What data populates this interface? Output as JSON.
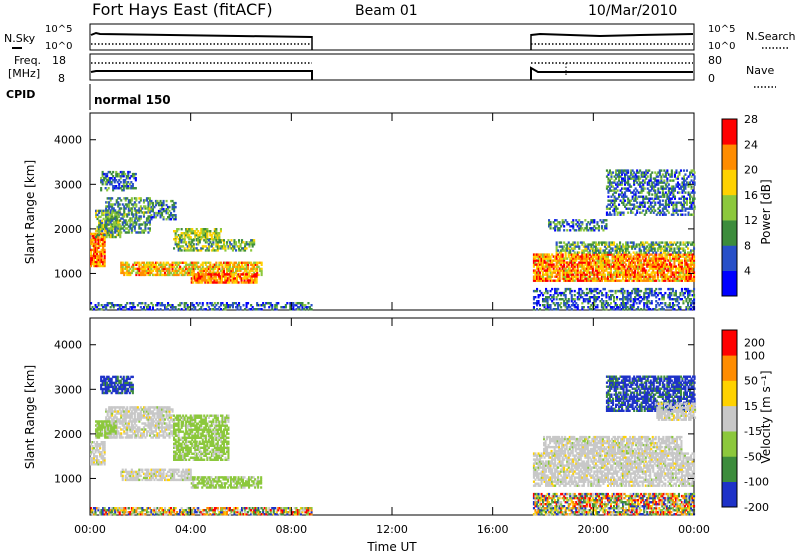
{
  "header": {
    "station": "Fort Hays East (fitACF)",
    "beam": "Beam 01",
    "date": "10/Mar/2010"
  },
  "summary_labels": {
    "nsky": "N.Sky",
    "nsearch": "N.Search",
    "freq_line1": "Freq.",
    "freq_line2": "[MHz]",
    "nave": "Nave",
    "cpid": "CPID",
    "cpid_value": "normal 150",
    "nsky_ticks": [
      "10^5",
      "10^0"
    ],
    "nsearch_ticks": [
      "10^5",
      "10^0"
    ],
    "freq_ticks": [
      "18",
      "8"
    ],
    "nave_ticks": [
      "80",
      "0"
    ]
  },
  "chart_data": [
    {
      "type": "heatmap",
      "panel": "power",
      "ylabel": "Slant Range [km]",
      "xlabel": "",
      "ylim": [
        180,
        4600
      ],
      "xlim": [
        0,
        24
      ],
      "ytick_labels": [
        "1000",
        "2000",
        "3000",
        "4000"
      ],
      "colorbar": {
        "label": "Power [dB]",
        "tick_labels": [
          "4",
          "8",
          "12",
          "16",
          "20",
          "24",
          "28"
        ],
        "colors": [
          "#0000ff",
          "#2850c8",
          "#3c8c3c",
          "#8cc83c",
          "#ffd200",
          "#ff8c00",
          "#ff0000"
        ]
      },
      "data_gap_hours": [
        8.8,
        17.6
      ]
    },
    {
      "type": "heatmap",
      "panel": "velocity",
      "ylabel": "Slant Range [km]",
      "xlabel": "Time UT",
      "ylim": [
        180,
        4600
      ],
      "xlim": [
        0,
        24
      ],
      "ytick_labels": [
        "1000",
        "2000",
        "3000",
        "4000"
      ],
      "xtick_labels": [
        "00:00",
        "04:00",
        "08:00",
        "12:00",
        "16:00",
        "20:00",
        "00:00"
      ],
      "colorbar": {
        "label": "Velocity [m s⁻¹]",
        "tick_labels": [
          "200",
          "100",
          "50",
          "15",
          "-15",
          "-50",
          "-100",
          "-200"
        ],
        "colors": [
          "#1e32c8",
          "#3c8c3c",
          "#8cc83c",
          "#c8c8c8",
          "#ffd200",
          "#ff8c00",
          "#ff0000"
        ]
      },
      "data_gap_hours": [
        8.8,
        17.6
      ]
    }
  ]
}
